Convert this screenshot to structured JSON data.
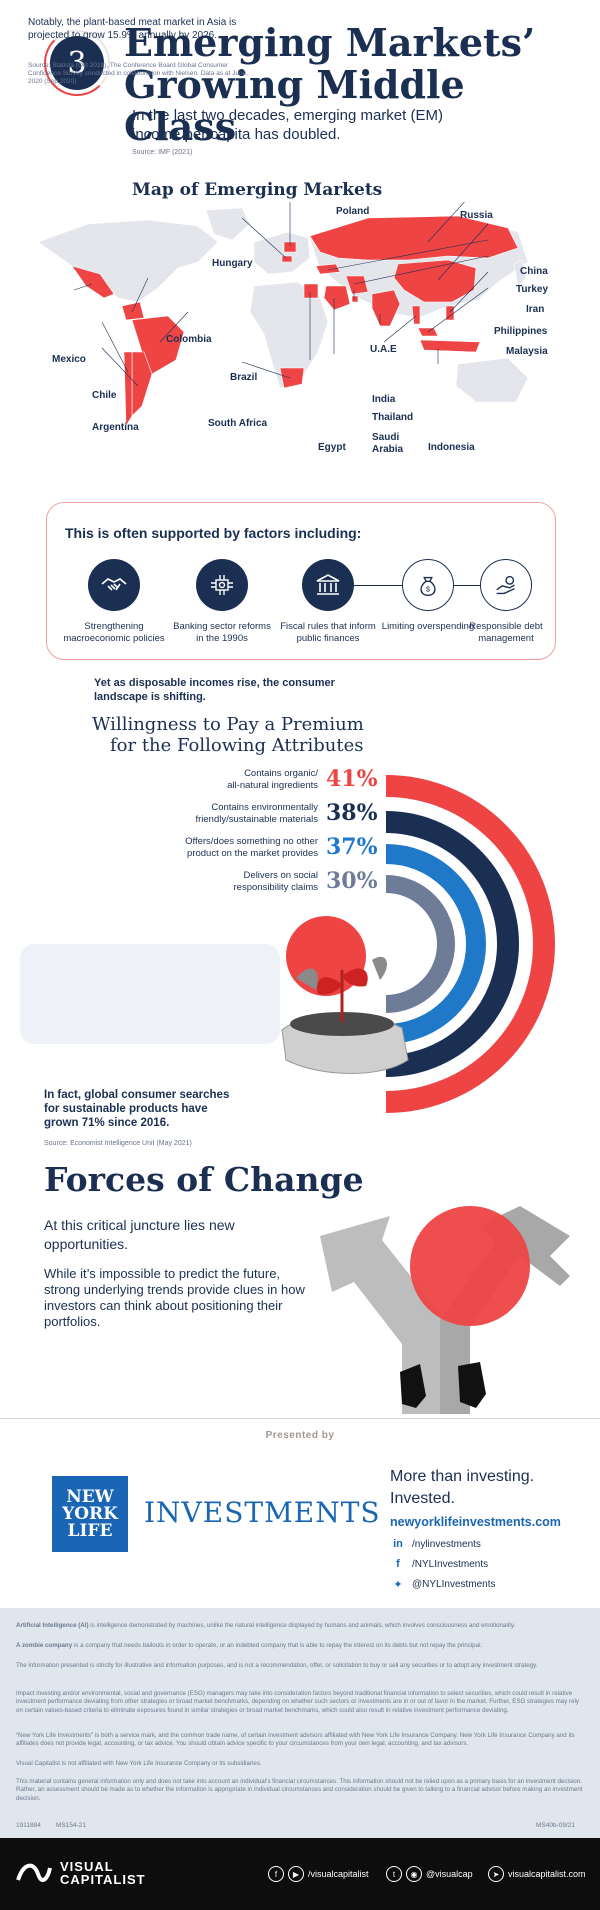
{
  "header": {
    "number": "3",
    "title_line1": "Emerging Markets’",
    "title_line2": "Growing Middle Class",
    "subtitle": "In the last two decades, emerging market (EM) income per capita has doubled.",
    "source": "Source: IMF (2021)"
  },
  "map": {
    "title": "Map of Emerging Markets",
    "countries": [
      "Poland",
      "Russia",
      "Hungary",
      "China",
      "Turkey",
      "Iran",
      "Philippines",
      "Malaysia",
      "U.A.E",
      "India",
      "Thailand",
      "Saudi Arabia",
      "Indonesia",
      "Egypt",
      "South Africa",
      "Mexico",
      "Colombia",
      "Brazil",
      "Chile",
      "Argentina"
    ],
    "highlight_color": "#ee4444",
    "land_color": "#e4e6ec"
  },
  "factors": {
    "title": "This is often supported by factors including:",
    "items": [
      {
        "label": "Strengthening macroeconomic policies",
        "icon": "handshake-icon"
      },
      {
        "label": "Banking sector reforms in the 1990s",
        "icon": "bank-network-icon"
      },
      {
        "label": "Fiscal rules that inform public finances",
        "icon": "institution-icon"
      },
      {
        "label": "Limiting overspending",
        "icon": "money-bag-icon"
      },
      {
        "label": "Responsible debt management",
        "icon": "hand-coin-icon"
      }
    ]
  },
  "willingness": {
    "intro": "Yet as disposable incomes rise, the consumer landscape is shifting.",
    "title_line1": "Willingness to Pay a Premium",
    "title_line2": "for the Following Attributes",
    "attributes": [
      {
        "label_line1": "Contains organic/",
        "label_line2": "all-natural ingredients",
        "percent": "41%",
        "value": 41,
        "color": "#ee4444"
      },
      {
        "label_line1": "Contains environmentally",
        "label_line2": "friendly/sustainable materials",
        "percent": "38%",
        "value": 38,
        "color": "#1b2f52"
      },
      {
        "label_line1": "Offers/does something no other",
        "label_line2": "product on the market provides",
        "percent": "37%",
        "value": 37,
        "color": "#1f78c8"
      },
      {
        "label_line1": "Delivers on social",
        "label_line2": "responsibility claims",
        "percent": "30%",
        "value": 30,
        "color": "#6f7c98"
      }
    ]
  },
  "plant": {
    "text": "Notably, the plant-based meat market in Asia is projected to grow 15.9% annually by 2026.",
    "source": "Source: Statista (Oct 2019), The Conference Board Global Consumer Confidence Survey conducted in collaboration with Nielsen. Data as at June, 2020 (Sep 2020)"
  },
  "searches": {
    "text": "In fact, global consumer searches for sustainable products have grown 71% since 2016.",
    "source": "Source: Economist Intelligence Unit (May 2021)"
  },
  "forces": {
    "title": "Forces of Change",
    "lead": "At this critical juncture lies new opportunities.",
    "body": "While it’s impossible to predict the future, strong underlying trends provide clues in how investors can think about positioning their portfolios."
  },
  "sponsor": {
    "presented_by": "Presented by",
    "logo_line1": "NEW",
    "logo_line2": "YORK",
    "logo_line3": "LIFE",
    "investments": "INVESTMENTS",
    "tagline_line1": "More than investing.",
    "tagline_line2": "Invested.",
    "url": "newyorklifeinvestments.com",
    "linkedin": "/nylinvestments",
    "facebook": "/NYLInvestments",
    "twitter": "@NYLInvestments"
  },
  "disclaimer": {
    "p1_bold": "Artificial Intelligence (AI)",
    "p1": " is intelligence demonstrated by machines, unlike the natural intelligence displayed by humans and animals, which involves consciousness and emotionality.",
    "p2_bold": "A zombie company",
    "p2": " is a company that needs bailouts in order to operate, or an indebted company that is able to repay the interest on its debts but not repay the principal.",
    "p3": "The information presented is strictly for illustrative and information purposes, and is not a recommendation, offer, or solicitation to buy or sell any securities or to adopt any investment strategy.",
    "p4": "Impact investing and/or environmental, social and governance (ESG) managers may take into consideration factors beyond traditional financial information to select securities, which could result in relative investment performance deviating from other strategies or broad market benchmarks, depending on whether such sectors or investments are in or out of favor in the market. Further, ESG strategies may rely on certain values-based criteria to eliminate exposures found in similar strategies or broad market benchmarks, which could also result in relative investment performance deviating.",
    "p5": "“New York Life Investments” is both a service mark, and the common trade name, of certain investment advisors affiliated with New York Life Insurance Company. New York Life Insurance Company and its affiliates does not provide legal, accounting, or tax advice. You should obtain advice specific to your circumstances from your own legal, accounting, and tax advisors.",
    "p6": "Visual Capitalist is not affiliated with New York Life Insurance Company or its subsidiaries.",
    "p7": "This material contains general information only and does not take into account an individual’s financial circumstances. This information should not be relied upon as a primary basis for an investment decision. Rather, an assessment should be made as to whether the information is appropriate in individual circumstances and consideration should be given to talking to a financial advisor before making an investment decision.",
    "code_left1": "1911884",
    "code_left2": "MS154-21",
    "code_right": "MS40b-09/21"
  },
  "footer": {
    "brand_line1": "VISUAL",
    "brand_line2": "CAPITALIST",
    "facebook": "/visualcapitalist",
    "twitter_instagram": "@visualcap",
    "site": "visualcapitalist.com"
  }
}
